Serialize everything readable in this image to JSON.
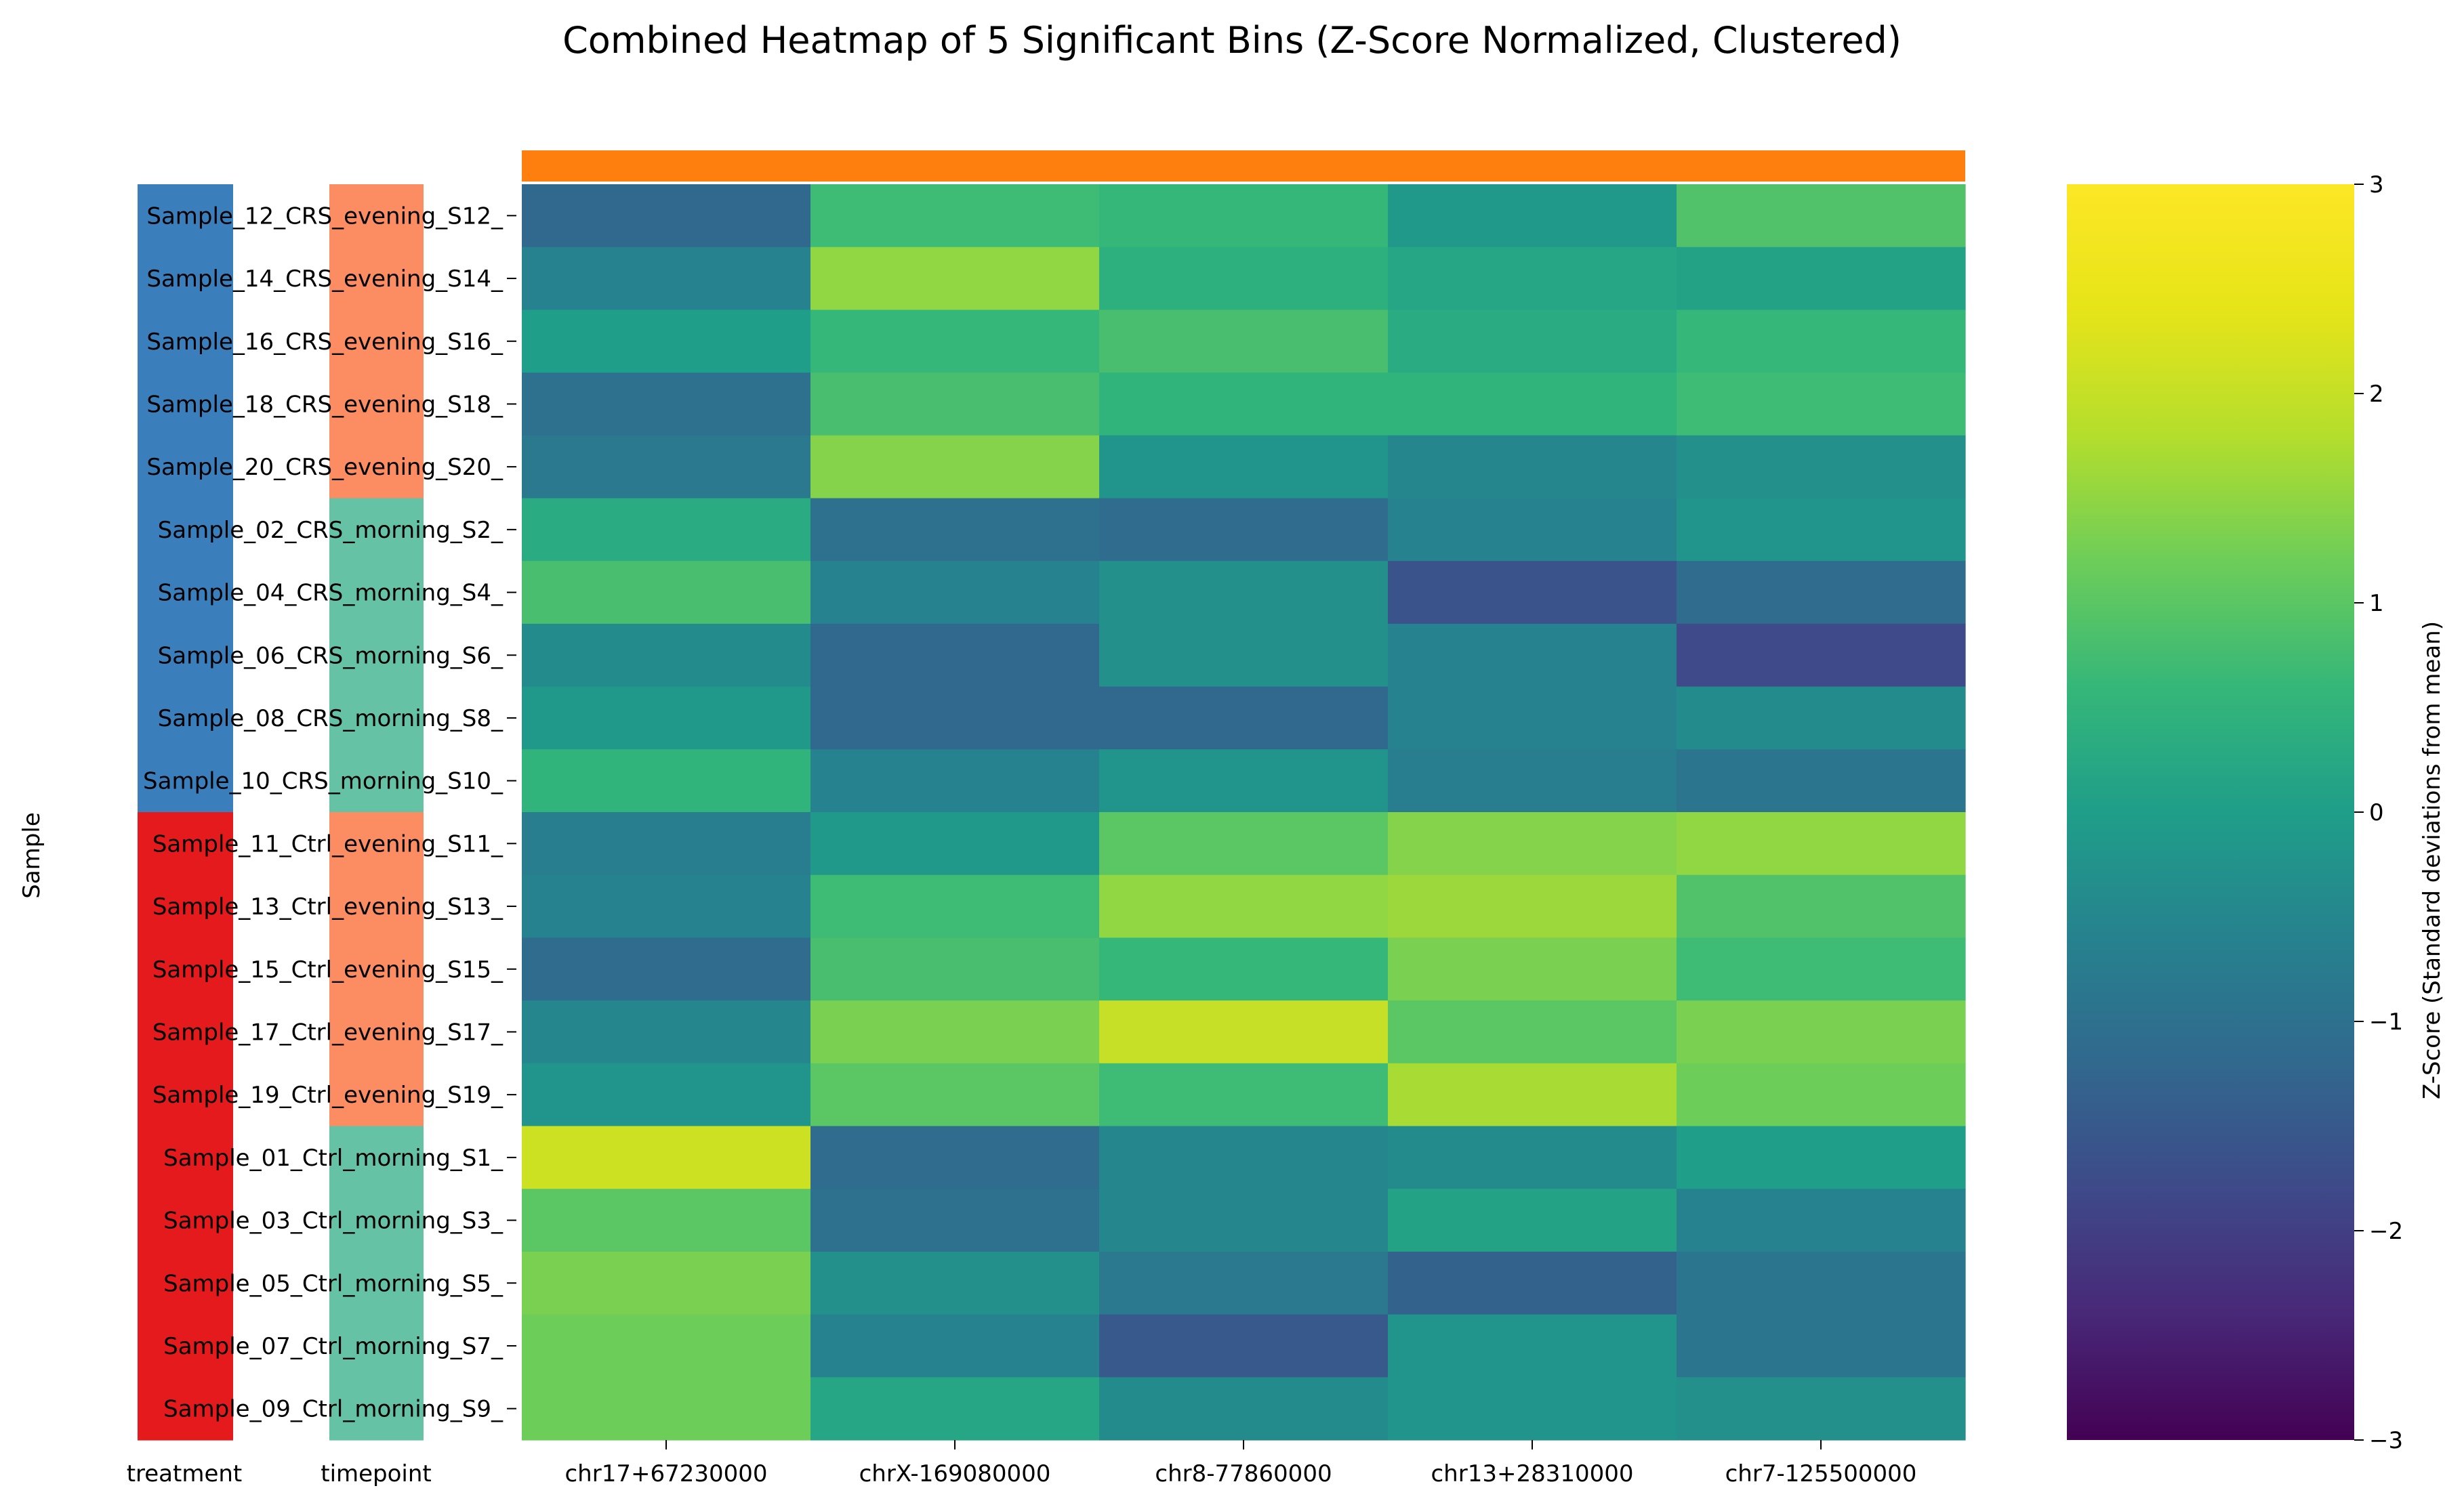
{
  "chart_data": {
    "type": "heatmap",
    "title": "Combined Heatmap of 5 Significant Bins (Z-Score Normalized, Clustered)",
    "ylabel": "Sample",
    "columns": [
      "chr17+67230000",
      "chrX-169080000",
      "chr8-77860000",
      "chr13+28310000",
      "chr7-125500000"
    ],
    "rows": [
      "Sample_12_CRS_evening_S12_",
      "Sample_14_CRS_evening_S14_",
      "Sample_16_CRS_evening_S16_",
      "Sample_18_CRS_evening_S18_",
      "Sample_20_CRS_evening_S20_",
      "Sample_02_CRS_morning_S2_",
      "Sample_04_CRS_morning_S4_",
      "Sample_06_CRS_morning_S6_",
      "Sample_08_CRS_morning_S8_",
      "Sample_10_CRS_morning_S10_",
      "Sample_11_Ctrl_evening_S11_",
      "Sample_13_Ctrl_evening_S13_",
      "Sample_15_Ctrl_evening_S15_",
      "Sample_17_Ctrl_evening_S17_",
      "Sample_19_Ctrl_evening_S19_",
      "Sample_01_Ctrl_morning_S1_",
      "Sample_03_Ctrl_morning_S3_",
      "Sample_05_Ctrl_morning_S5_",
      "Sample_07_Ctrl_morning_S7_",
      "Sample_09_Ctrl_morning_S9_"
    ],
    "values": [
      [
        -1.2,
        0.7,
        0.6,
        -0.1,
        0.9
      ],
      [
        -0.6,
        1.5,
        0.4,
        0.2,
        0.1
      ],
      [
        0.0,
        0.6,
        0.8,
        0.3,
        0.6
      ],
      [
        -1.0,
        0.8,
        0.5,
        0.5,
        0.7
      ],
      [
        -0.8,
        1.4,
        -0.2,
        -0.5,
        -0.3
      ],
      [
        0.3,
        -1.0,
        -1.1,
        -0.6,
        -0.2
      ],
      [
        0.8,
        -0.6,
        -0.3,
        -1.6,
        -1.1
      ],
      [
        -0.4,
        -1.2,
        -0.3,
        -0.6,
        -1.8
      ],
      [
        -0.1,
        -1.2,
        -1.2,
        -0.6,
        -0.4
      ],
      [
        0.5,
        -0.6,
        -0.2,
        -0.7,
        -0.9
      ],
      [
        -0.7,
        -0.1,
        1.0,
        1.4,
        1.5
      ],
      [
        -0.6,
        0.7,
        1.5,
        1.6,
        0.9
      ],
      [
        -1.1,
        0.8,
        0.6,
        1.3,
        0.7
      ],
      [
        -0.5,
        1.3,
        2.0,
        1.0,
        1.3
      ],
      [
        -0.2,
        1.0,
        0.7,
        1.7,
        1.2
      ],
      [
        2.1,
        -1.1,
        -0.5,
        -0.4,
        0.0
      ],
      [
        1.0,
        -1.0,
        -0.5,
        0.1,
        -0.6
      ],
      [
        1.3,
        -0.3,
        -0.8,
        -1.3,
        -0.9
      ],
      [
        1.2,
        -0.6,
        -1.5,
        -0.2,
        -0.9
      ],
      [
        1.2,
        0.2,
        -0.4,
        -0.2,
        -0.3
      ]
    ],
    "treatment": {
      "label": "treatment",
      "values": [
        "CRS",
        "CRS",
        "CRS",
        "CRS",
        "CRS",
        "CRS",
        "CRS",
        "CRS",
        "CRS",
        "CRS",
        "Ctrl",
        "Ctrl",
        "Ctrl",
        "Ctrl",
        "Ctrl",
        "Ctrl",
        "Ctrl",
        "Ctrl",
        "Ctrl",
        "Ctrl"
      ],
      "colors": {
        "CRS": "#3a7fbc",
        "Ctrl": "#e41a1c"
      }
    },
    "timepoint": {
      "label": "timepoint",
      "values": [
        "evening",
        "evening",
        "evening",
        "evening",
        "evening",
        "morning",
        "morning",
        "morning",
        "morning",
        "morning",
        "evening",
        "evening",
        "evening",
        "evening",
        "evening",
        "morning",
        "morning",
        "morning",
        "morning",
        "morning"
      ],
      "colors": {
        "evening": "#fc8d62",
        "morning": "#66c2a5"
      }
    },
    "column_annotation_color": "#ff7f0e",
    "colorbar": {
      "label": "Z-Score (Standard deviations from mean)",
      "range": [
        -3,
        3
      ],
      "ticks": [
        "3",
        "2",
        "1",
        "0",
        "−1",
        "−2",
        "−3"
      ],
      "tick_values": [
        3,
        2,
        1,
        0,
        -1,
        -2,
        -3
      ],
      "colormap": "viridis"
    }
  }
}
